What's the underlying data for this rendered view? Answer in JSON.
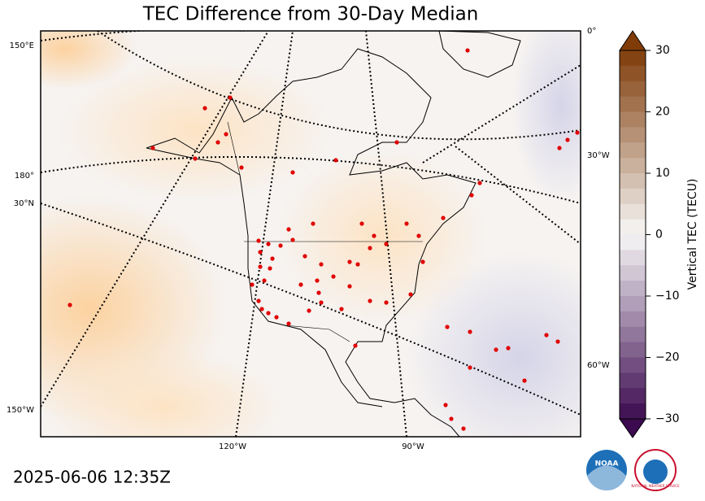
{
  "title": "TEC Difference from 30-Day Median",
  "timestamp": "2025-06-06 12:35Z",
  "colorbar": {
    "label": "Vertical TEC (TECU)",
    "range": [
      -30,
      30
    ],
    "ticks": [
      30,
      20,
      10,
      0,
      {
        "value": -10,
        "label": "−10"
      },
      {
        "value": -20,
        "label": "−20"
      },
      {
        "value": -30,
        "label": "−30"
      }
    ]
  },
  "graticule_labels": {
    "left": [
      "150°E",
      "180°",
      "30°N",
      "150°W"
    ],
    "right": [
      "0°",
      "30°W",
      "60°W"
    ],
    "bottom": [
      "120°W",
      "90°W"
    ]
  },
  "logos": {
    "noaa": "NOAA",
    "nws": "NATIONAL WEATHER SERVICE"
  }
}
